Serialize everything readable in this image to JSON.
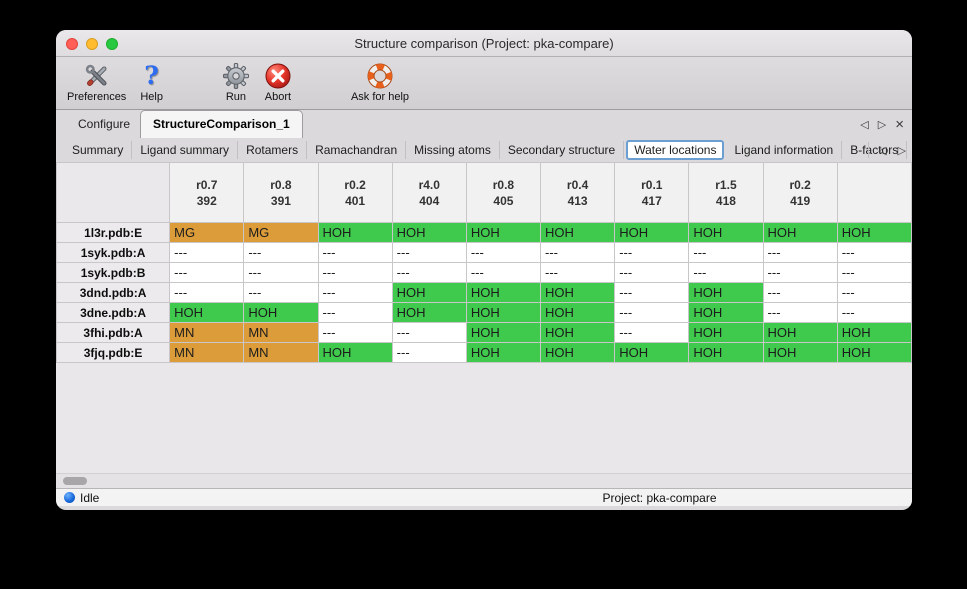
{
  "window": {
    "title": "Structure comparison (Project: pka-compare)"
  },
  "toolbar": {
    "items": [
      {
        "label": "Preferences"
      },
      {
        "label": "Help",
        "glyph": "?"
      },
      {
        "label": "Run"
      },
      {
        "label": "Abort"
      },
      {
        "label": "Ask for help"
      }
    ]
  },
  "tabs": {
    "main": [
      {
        "label": "Configure"
      },
      {
        "label": "StructureComparison_1"
      }
    ],
    "controls": {
      "prev": "◁",
      "next": "▷",
      "close": "×"
    },
    "sub": [
      {
        "label": "Summary"
      },
      {
        "label": "Ligand summary"
      },
      {
        "label": "Rotamers"
      },
      {
        "label": "Ramachandran"
      },
      {
        "label": "Missing atoms"
      },
      {
        "label": "Secondary structure"
      },
      {
        "label": "Water locations"
      },
      {
        "label": "Ligand information"
      },
      {
        "label": "B-factors"
      }
    ],
    "sub_controls": {
      "prev": "◁",
      "next": "▷"
    }
  },
  "table": {
    "columns": [
      {
        "line1": "r0.7",
        "line2": "392"
      },
      {
        "line1": "r0.8",
        "line2": "391"
      },
      {
        "line1": "r0.2",
        "line2": "401"
      },
      {
        "line1": "r4.0",
        "line2": "404"
      },
      {
        "line1": "r0.8",
        "line2": "405"
      },
      {
        "line1": "r0.4",
        "line2": "413"
      },
      {
        "line1": "r0.1",
        "line2": "417"
      },
      {
        "line1": "r1.5",
        "line2": "418"
      },
      {
        "line1": "r0.2",
        "line2": "419"
      },
      {
        "line1": "",
        "line2": ""
      }
    ],
    "rows": [
      {
        "label": "1l3r.pdb:E",
        "cells": [
          {
            "t": "MG",
            "c": "o"
          },
          {
            "t": "MG",
            "c": "o"
          },
          {
            "t": "HOH",
            "c": "g"
          },
          {
            "t": "HOH",
            "c": "g"
          },
          {
            "t": "HOH",
            "c": "g"
          },
          {
            "t": "HOH",
            "c": "g"
          },
          {
            "t": "HOH",
            "c": "g"
          },
          {
            "t": "HOH",
            "c": "g"
          },
          {
            "t": "HOH",
            "c": "g"
          },
          {
            "t": "HOH",
            "c": "g"
          }
        ]
      },
      {
        "label": "1syk.pdb:A",
        "cells": [
          {
            "t": "---",
            "c": ""
          },
          {
            "t": "---",
            "c": ""
          },
          {
            "t": "---",
            "c": ""
          },
          {
            "t": "---",
            "c": ""
          },
          {
            "t": "---",
            "c": ""
          },
          {
            "t": "---",
            "c": ""
          },
          {
            "t": "---",
            "c": ""
          },
          {
            "t": "---",
            "c": ""
          },
          {
            "t": "---",
            "c": ""
          },
          {
            "t": "---",
            "c": ""
          }
        ]
      },
      {
        "label": "1syk.pdb:B",
        "cells": [
          {
            "t": "---",
            "c": ""
          },
          {
            "t": "---",
            "c": ""
          },
          {
            "t": "---",
            "c": ""
          },
          {
            "t": "---",
            "c": ""
          },
          {
            "t": "---",
            "c": ""
          },
          {
            "t": "---",
            "c": ""
          },
          {
            "t": "---",
            "c": ""
          },
          {
            "t": "---",
            "c": ""
          },
          {
            "t": "---",
            "c": ""
          },
          {
            "t": "---",
            "c": ""
          }
        ]
      },
      {
        "label": "3dnd.pdb:A",
        "cells": [
          {
            "t": "---",
            "c": ""
          },
          {
            "t": "---",
            "c": ""
          },
          {
            "t": "---",
            "c": ""
          },
          {
            "t": "HOH",
            "c": "g"
          },
          {
            "t": "HOH",
            "c": "g"
          },
          {
            "t": "HOH",
            "c": "g"
          },
          {
            "t": "---",
            "c": ""
          },
          {
            "t": "HOH",
            "c": "g"
          },
          {
            "t": "---",
            "c": ""
          },
          {
            "t": "---",
            "c": ""
          }
        ]
      },
      {
        "label": "3dne.pdb:A",
        "cells": [
          {
            "t": "HOH",
            "c": "g"
          },
          {
            "t": "HOH",
            "c": "g"
          },
          {
            "t": "---",
            "c": ""
          },
          {
            "t": "HOH",
            "c": "g"
          },
          {
            "t": "HOH",
            "c": "g"
          },
          {
            "t": "HOH",
            "c": "g"
          },
          {
            "t": "---",
            "c": ""
          },
          {
            "t": "HOH",
            "c": "g"
          },
          {
            "t": "---",
            "c": ""
          },
          {
            "t": "---",
            "c": ""
          }
        ]
      },
      {
        "label": "3fhi.pdb:A",
        "cells": [
          {
            "t": "MN",
            "c": "o"
          },
          {
            "t": "MN",
            "c": "o"
          },
          {
            "t": "---",
            "c": ""
          },
          {
            "t": "---",
            "c": ""
          },
          {
            "t": "HOH",
            "c": "g"
          },
          {
            "t": "HOH",
            "c": "g"
          },
          {
            "t": "---",
            "c": ""
          },
          {
            "t": "HOH",
            "c": "g"
          },
          {
            "t": "HOH",
            "c": "g"
          },
          {
            "t": "HOH",
            "c": "g"
          }
        ]
      },
      {
        "label": "3fjq.pdb:E",
        "cells": [
          {
            "t": "MN",
            "c": "o"
          },
          {
            "t": "MN",
            "c": "o"
          },
          {
            "t": "HOH",
            "c": "g"
          },
          {
            "t": "---",
            "c": ""
          },
          {
            "t": "HOH",
            "c": "g"
          },
          {
            "t": "HOH",
            "c": "g"
          },
          {
            "t": "HOH",
            "c": "g"
          },
          {
            "t": "HOH",
            "c": "g"
          },
          {
            "t": "HOH",
            "c": "g"
          },
          {
            "t": "HOH",
            "c": "g"
          }
        ]
      }
    ]
  },
  "statusbar": {
    "status": "Idle",
    "project": "Project: pka-compare"
  },
  "colors": {
    "green": "#3fca4d",
    "orange": "#dc9c3a"
  }
}
